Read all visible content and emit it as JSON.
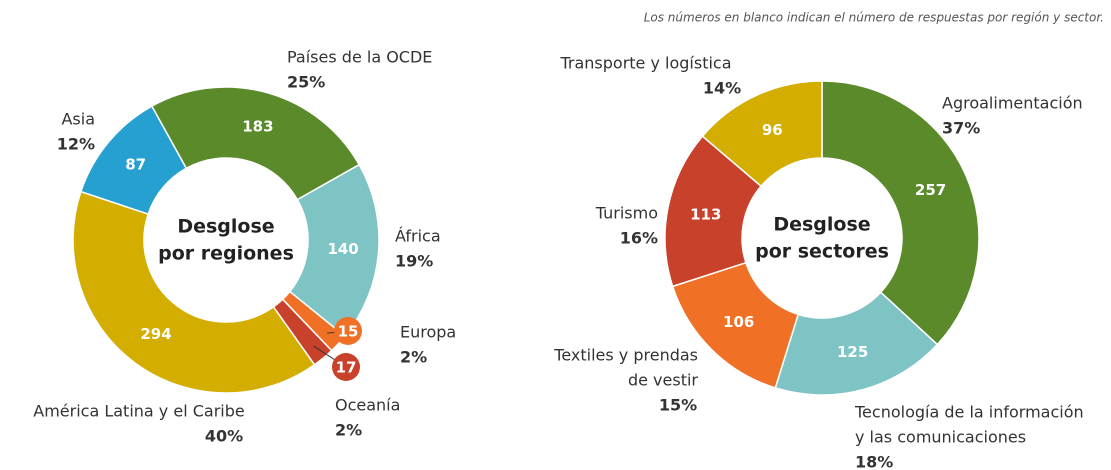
{
  "note": "Los números en blanco indican el número de respuestas por región y sector.",
  "chart_data": [
    {
      "type": "donut",
      "center_label": [
        "Desglose",
        "por regiones"
      ],
      "categories": [
        [
          "Países de la OCDE"
        ],
        [
          "África"
        ],
        [
          "Europa"
        ],
        [
          "Oceanía"
        ],
        [
          "América Latina y el Caribe"
        ],
        [
          "Asia"
        ]
      ],
      "values": [
        183,
        140,
        15,
        17,
        294,
        87
      ],
      "percent_labels": [
        "25%",
        "19%",
        "2%",
        "2%",
        "40%",
        "12%"
      ],
      "colors": [
        "#5b8a2b",
        "#7fc4c5",
        "#f07126",
        "#c8412b",
        "#d3ad00",
        "#25a0d1"
      ]
    },
    {
      "type": "donut",
      "center_label": [
        "Desglose",
        "por sectores"
      ],
      "categories": [
        [
          "Agroalimentación"
        ],
        [
          "Tecnología de la información",
          "y las comunicaciones"
        ],
        [
          "Textiles y prendas",
          "de vestir"
        ],
        [
          "Turismo"
        ],
        [
          "Transporte y logística"
        ]
      ],
      "values": [
        257,
        125,
        106,
        113,
        96
      ],
      "percent_labels": [
        "37%",
        "18%",
        "15%",
        "16%",
        "14%"
      ],
      "colors": [
        "#5b8a2b",
        "#7fc4c5",
        "#f07126",
        "#c8412b",
        "#d3ad00"
      ]
    }
  ]
}
